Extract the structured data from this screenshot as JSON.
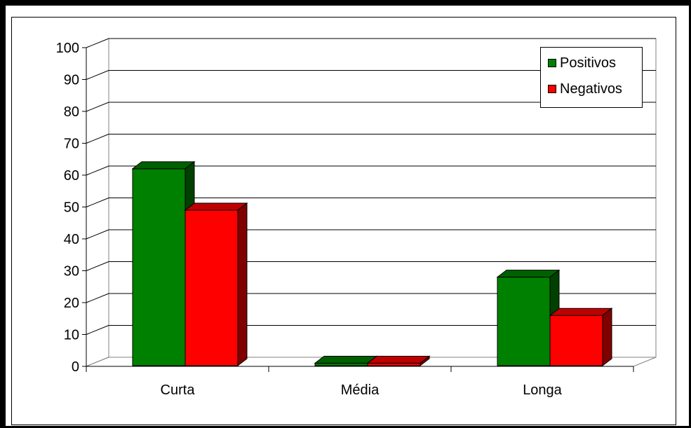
{
  "chart_data": {
    "type": "bar",
    "categories": [
      "Curta",
      "Média",
      "Longa"
    ],
    "series": [
      {
        "name": "Positivos",
        "values": [
          62,
          1,
          28
        ],
        "color": "#008000"
      },
      {
        "name": "Negativos",
        "values": [
          49,
          1,
          16
        ],
        "color": "#ff0000"
      }
    ],
    "title": "",
    "xlabel": "",
    "ylabel": "",
    "ylim": [
      0,
      100
    ],
    "yticks": [
      "0",
      "10",
      "20",
      "30",
      "40",
      "50",
      "60",
      "70",
      "80",
      "90",
      "100"
    ],
    "grid": true,
    "legend": "top-right",
    "style": "3d-clustered-column"
  }
}
